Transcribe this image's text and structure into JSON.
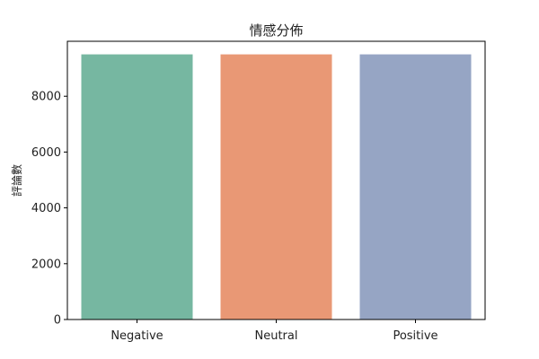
{
  "chart_data": {
    "type": "bar",
    "title": "情感分佈",
    "xlabel": "",
    "ylabel": "評論數",
    "categories": [
      "Negative",
      "Neutral",
      "Positive"
    ],
    "values": [
      9500,
      9500,
      9500
    ],
    "colors": [
      "#76b7a1",
      "#e99875",
      "#96a5c4"
    ],
    "ylim": [
      0,
      9500
    ],
    "yticks": [
      0,
      2000,
      4000,
      6000,
      8000
    ],
    "grid": false,
    "legend": "none"
  }
}
